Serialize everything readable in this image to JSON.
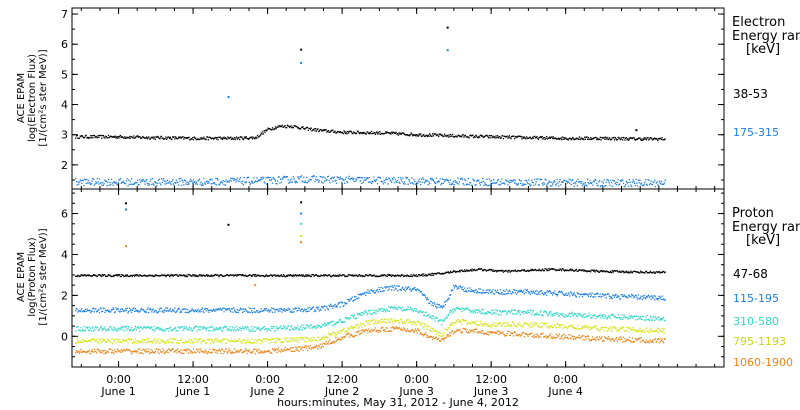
{
  "chart_data": [
    {
      "type": "scatter",
      "panel": "electron",
      "ylabel": [
        "ACE EPAM",
        "log(Electron Flux)",
        "[1/(cm²s ster MeV)]"
      ],
      "ylim": [
        1.2,
        7.2
      ],
      "yticks": [
        "2",
        "3",
        "4",
        "5",
        "6",
        "7"
      ],
      "ytick_values": [
        2,
        3,
        4,
        5,
        6,
        7
      ],
      "legend_title": [
        "Electron",
        "Energy ranges",
        "[keV]"
      ],
      "series": [
        {
          "name": "38-53",
          "color": "#000000",
          "x": [
            -7,
            0,
            6,
            12,
            18,
            22,
            24,
            26,
            28,
            30,
            33,
            36,
            42,
            48,
            54,
            60,
            66,
            72,
            78,
            84,
            88
          ],
          "y": [
            2.95,
            2.95,
            2.92,
            2.9,
            2.9,
            2.92,
            3.2,
            3.3,
            3.3,
            3.22,
            3.15,
            3.1,
            3.08,
            3.02,
            2.98,
            2.95,
            2.92,
            2.9,
            2.9,
            2.88,
            2.88
          ],
          "outliers": {
            "x": [
              29.4,
              53.0,
              83.4
            ],
            "y": [
              5.82,
              6.55,
              3.15
            ]
          }
        },
        {
          "name": "175-315",
          "color": "#1f7fe0",
          "x": [
            -7,
            12,
            24,
            30,
            42,
            60,
            78,
            88
          ],
          "y": [
            1.45,
            1.45,
            1.5,
            1.55,
            1.5,
            1.45,
            1.42,
            1.42
          ],
          "outliers": {
            "x": [
              17.7,
              29.4,
              53.0
            ],
            "y": [
              4.25,
              5.38,
              5.8
            ]
          }
        }
      ]
    },
    {
      "type": "scatter",
      "panel": "proton",
      "ylabel": [
        "ACE EPAM",
        "log(Proton Flux)",
        "[1/(cm²s ster MeV)]"
      ],
      "ylim": [
        -1.5,
        7.2
      ],
      "yticks": [
        "0",
        "2",
        "4",
        "6"
      ],
      "ytick_values": [
        0,
        2,
        4,
        6
      ],
      "legend_title": [
        "Proton",
        "Energy ranges",
        "[keV]"
      ],
      "series": [
        {
          "name": "47-68",
          "color": "#000000",
          "x": [
            -7,
            30,
            48,
            52,
            54,
            58,
            62,
            70,
            78,
            88
          ],
          "y": [
            3.0,
            3.0,
            3.0,
            3.1,
            3.2,
            3.3,
            3.2,
            3.3,
            3.2,
            3.15
          ],
          "outliers": {
            "x": [
              1.2,
              17.7,
              29.4
            ],
            "y": [
              6.5,
              5.45,
              6.55
            ]
          }
        },
        {
          "name": "115-195",
          "color": "#1f7fe0",
          "x": [
            -7,
            24,
            32,
            36,
            40,
            44,
            48,
            50,
            52,
            54,
            56,
            60,
            66,
            72,
            78,
            88
          ],
          "y": [
            1.3,
            1.3,
            1.35,
            1.6,
            2.2,
            2.4,
            2.3,
            1.7,
            1.4,
            2.5,
            2.3,
            2.2,
            2.2,
            2.1,
            2.0,
            1.9
          ],
          "outliers": {
            "x": [
              1.2,
              29.4
            ],
            "y": [
              6.2,
              6.0
            ]
          }
        },
        {
          "name": "310-580",
          "color": "#2fd8c8",
          "x": [
            -7,
            24,
            32,
            36,
            40,
            44,
            48,
            50,
            52,
            54,
            56,
            60,
            66,
            72,
            78,
            88
          ],
          "y": [
            0.4,
            0.4,
            0.5,
            0.8,
            1.2,
            1.4,
            1.3,
            1.0,
            0.7,
            1.4,
            1.3,
            1.2,
            1.2,
            1.1,
            1.0,
            0.9
          ],
          "outliers": {
            "x": [
              29.4
            ],
            "y": [
              5.5
            ]
          }
        },
        {
          "name": "795-1193",
          "color": "#d6e41c",
          "x": [
            -7,
            24,
            32,
            36,
            40,
            44,
            48,
            50,
            52,
            54,
            56,
            60,
            66,
            72,
            78,
            88
          ],
          "y": [
            -0.2,
            -0.2,
            -0.1,
            0.3,
            0.7,
            0.8,
            0.7,
            0.4,
            0.1,
            0.8,
            0.7,
            0.6,
            0.6,
            0.5,
            0.4,
            0.3
          ],
          "outliers": {
            "x": [
              29.4
            ],
            "y": [
              4.9
            ]
          }
        },
        {
          "name": "1060-1900",
          "color": "#e8861a",
          "x": [
            -7,
            24,
            32,
            36,
            40,
            44,
            48,
            50,
            52,
            54,
            56,
            60,
            66,
            72,
            78,
            88
          ],
          "y": [
            -0.7,
            -0.7,
            -0.5,
            0.0,
            0.3,
            0.4,
            0.3,
            0.0,
            -0.2,
            0.3,
            0.3,
            0.2,
            0.1,
            0.0,
            -0.1,
            -0.2
          ],
          "outliers": {
            "x": [
              1.2,
              22.0,
              29.4
            ],
            "y": [
              4.4,
              2.5,
              4.6
            ]
          }
        }
      ]
    }
  ],
  "xaxis": {
    "unit": "hours since 0:00 June 1",
    "xlim": [
      -7.5,
      97.5
    ],
    "ticks": [
      {
        "value": 0,
        "time": "0:00",
        "date": "June 1"
      },
      {
        "value": 12,
        "time": "12:00",
        "date": "June 1"
      },
      {
        "value": 24,
        "time": "0:00",
        "date": "June 2"
      },
      {
        "value": 36,
        "time": "12:00",
        "date": "June 2"
      },
      {
        "value": 48,
        "time": "0:00",
        "date": "June 3"
      },
      {
        "value": 60,
        "time": "12:00",
        "date": "June 3"
      },
      {
        "value": 72,
        "time": "0:00",
        "date": "June 4"
      }
    ],
    "label": "hours:minutes, May 31, 2012 - June  4, 2012"
  }
}
